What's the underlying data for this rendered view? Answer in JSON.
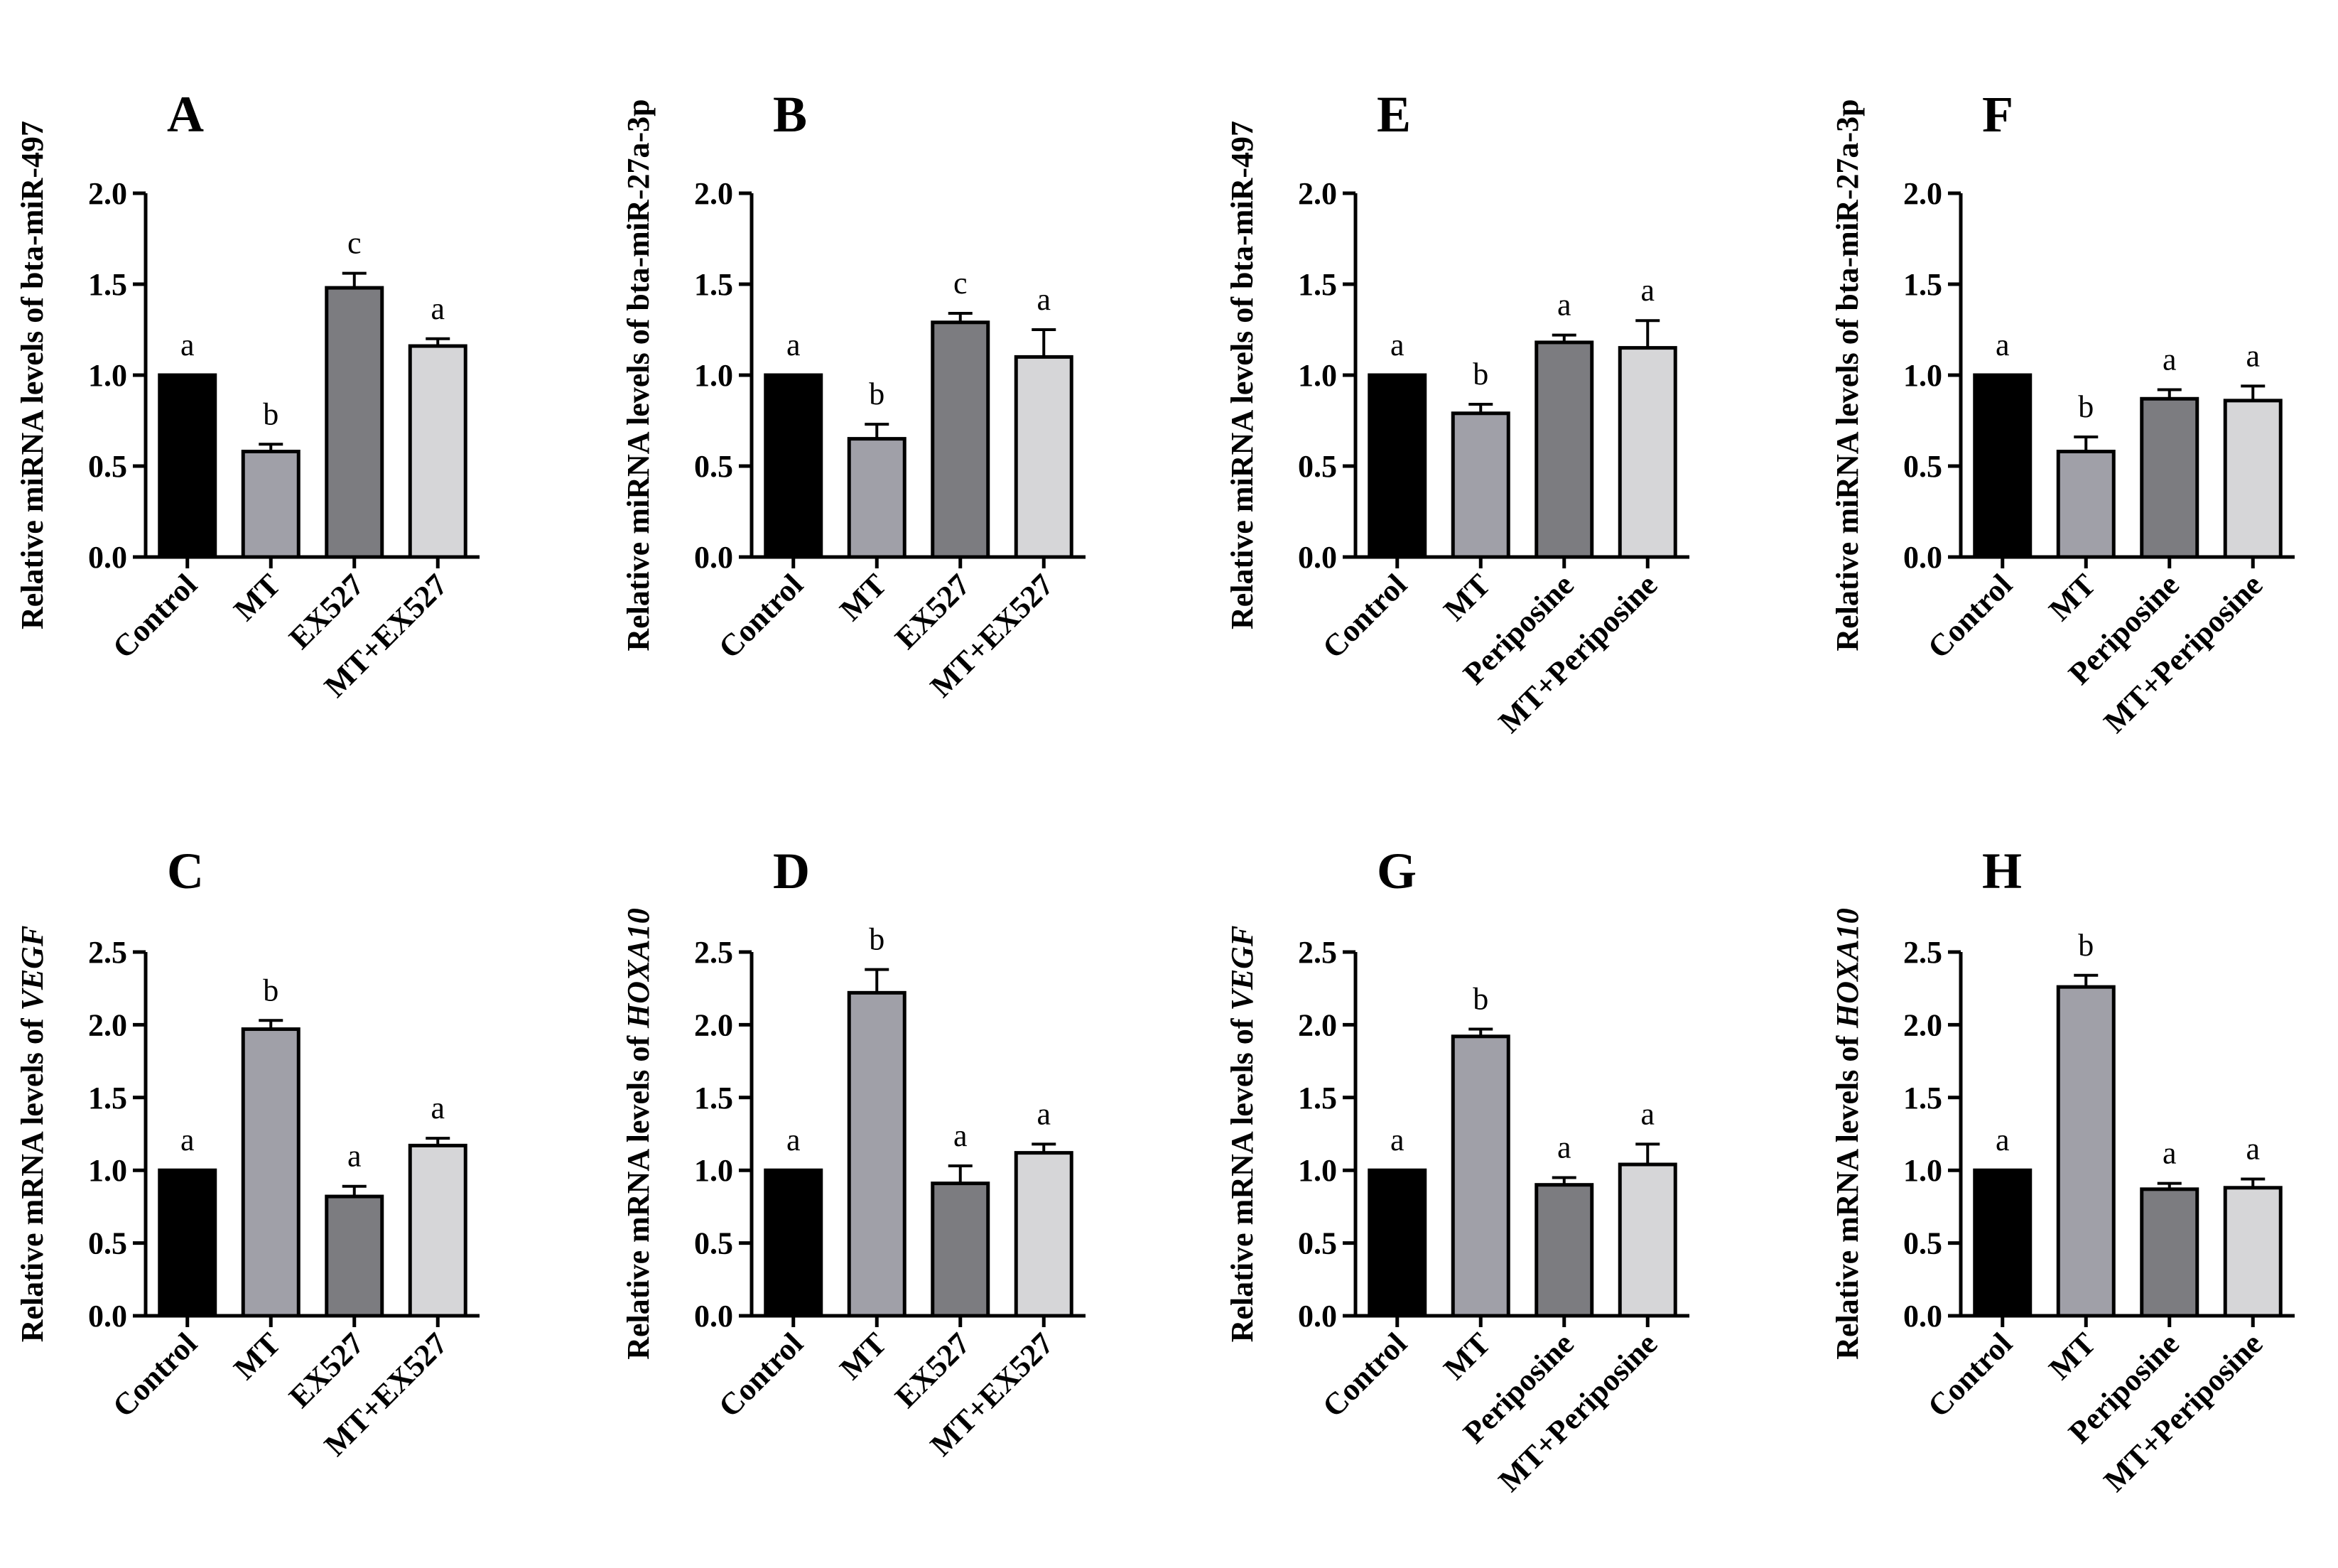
{
  "colors": {
    "Control": "#000000",
    "MT": "#a0a0a8",
    "EX527": "#7c7c80",
    "MT+EX527": "#d6d6d8",
    "Periposine": "#7c7c80",
    "MT+Periposine": "#d6d6d8",
    "axis": "#000000"
  },
  "chart_data": [
    {
      "type": "bar",
      "panel": "A",
      "title": "A",
      "ylabel_prefix": "Relative miRNA levels of ",
      "ylabel_gene": "bta-miR-497",
      "gene_italic": false,
      "categories": [
        "Control",
        "MT",
        "EX527",
        "MT+EX527"
      ],
      "values": [
        1.0,
        0.58,
        1.48,
        1.16
      ],
      "errors": [
        0.0,
        0.04,
        0.08,
        0.04
      ],
      "significance": [
        "a",
        "b",
        "c",
        "a"
      ],
      "ylim": [
        0,
        2.0
      ],
      "yticks": [
        "0.0",
        "0.5",
        "1.0",
        "1.5",
        "2.0"
      ]
    },
    {
      "type": "bar",
      "panel": "B",
      "title": "B",
      "ylabel_prefix": "Relative miRNA levels of ",
      "ylabel_gene": "bta-miR-27a-3p",
      "gene_italic": false,
      "categories": [
        "Control",
        "MT",
        "EX527",
        "MT+EX527"
      ],
      "values": [
        1.0,
        0.65,
        1.29,
        1.1
      ],
      "errors": [
        0.0,
        0.08,
        0.05,
        0.15
      ],
      "significance": [
        "a",
        "b",
        "c",
        "a"
      ],
      "ylim": [
        0,
        2.0
      ],
      "yticks": [
        "0.0",
        "0.5",
        "1.0",
        "1.5",
        "2.0"
      ]
    },
    {
      "type": "bar",
      "panel": "E",
      "title": "E",
      "ylabel_prefix": "Relative miRNA levels of ",
      "ylabel_gene": "bta-miR-497",
      "gene_italic": false,
      "categories": [
        "Control",
        "MT",
        "Periposine",
        "MT+Periposine"
      ],
      "values": [
        1.0,
        0.79,
        1.18,
        1.15
      ],
      "errors": [
        0.0,
        0.05,
        0.04,
        0.15
      ],
      "significance": [
        "a",
        "b",
        "a",
        "a"
      ],
      "ylim": [
        0,
        2.0
      ],
      "yticks": [
        "0.0",
        "0.5",
        "1.0",
        "1.5",
        "2.0"
      ]
    },
    {
      "type": "bar",
      "panel": "F",
      "title": "F",
      "ylabel_prefix": "Relative miRNA levels of ",
      "ylabel_gene": "bta-miR-27a-3p",
      "gene_italic": false,
      "categories": [
        "Control",
        "MT",
        "Periposine",
        "MT+Periposine"
      ],
      "values": [
        1.0,
        0.58,
        0.87,
        0.86
      ],
      "errors": [
        0.0,
        0.08,
        0.05,
        0.08
      ],
      "significance": [
        "a",
        "b",
        "a",
        "a"
      ],
      "ylim": [
        0,
        2.0
      ],
      "yticks": [
        "0.0",
        "0.5",
        "1.0",
        "1.5",
        "2.0"
      ]
    },
    {
      "type": "bar",
      "panel": "C",
      "title": "C",
      "ylabel_prefix": "Relative mRNA levels of ",
      "ylabel_gene": "VEGF",
      "gene_italic": true,
      "categories": [
        "Control",
        "MT",
        "EX527",
        "MT+EX527"
      ],
      "values": [
        1.0,
        1.97,
        0.82,
        1.17
      ],
      "errors": [
        0.0,
        0.06,
        0.07,
        0.05
      ],
      "significance": [
        "a",
        "b",
        "a",
        "a"
      ],
      "ylim": [
        0,
        2.5
      ],
      "yticks": [
        "0.0",
        "0.5",
        "1.0",
        "1.5",
        "2.0",
        "2.5"
      ]
    },
    {
      "type": "bar",
      "panel": "D",
      "title": "D",
      "ylabel_prefix": "Relative mRNA levels of ",
      "ylabel_gene": "HOXA10",
      "gene_italic": true,
      "categories": [
        "Control",
        "MT",
        "EX527",
        "MT+EX527"
      ],
      "values": [
        1.0,
        2.22,
        0.91,
        1.12
      ],
      "errors": [
        0.0,
        0.16,
        0.12,
        0.06
      ],
      "significance": [
        "a",
        "b",
        "a",
        "a"
      ],
      "ylim": [
        0,
        2.5
      ],
      "yticks": [
        "0.0",
        "0.5",
        "1.0",
        "1.5",
        "2.0",
        "2.5"
      ]
    },
    {
      "type": "bar",
      "panel": "G",
      "title": "G",
      "ylabel_prefix": "Relative mRNA levels of ",
      "ylabel_gene": "VEGF",
      "gene_italic": true,
      "categories": [
        "Control",
        "MT",
        "Periposine",
        "MT+Periposine"
      ],
      "values": [
        1.0,
        1.92,
        0.9,
        1.04
      ],
      "errors": [
        0.0,
        0.05,
        0.05,
        0.14
      ],
      "significance": [
        "a",
        "b",
        "a",
        "a"
      ],
      "ylim": [
        0,
        2.5
      ],
      "yticks": [
        "0.0",
        "0.5",
        "1.0",
        "1.5",
        "2.0",
        "2.5"
      ]
    },
    {
      "type": "bar",
      "panel": "H",
      "title": "H",
      "ylabel_prefix": "Relative mRNA levels of ",
      "ylabel_gene": "HOXA10",
      "gene_italic": true,
      "categories": [
        "Control",
        "MT",
        "Periposine",
        "MT+Periposine"
      ],
      "values": [
        1.0,
        2.26,
        0.87,
        0.88
      ],
      "errors": [
        0.0,
        0.08,
        0.04,
        0.06
      ],
      "significance": [
        "a",
        "b",
        "a",
        "a"
      ],
      "ylim": [
        0,
        2.5
      ],
      "yticks": [
        "0.0",
        "0.5",
        "1.0",
        "1.5",
        "2.0",
        "2.5"
      ]
    }
  ]
}
